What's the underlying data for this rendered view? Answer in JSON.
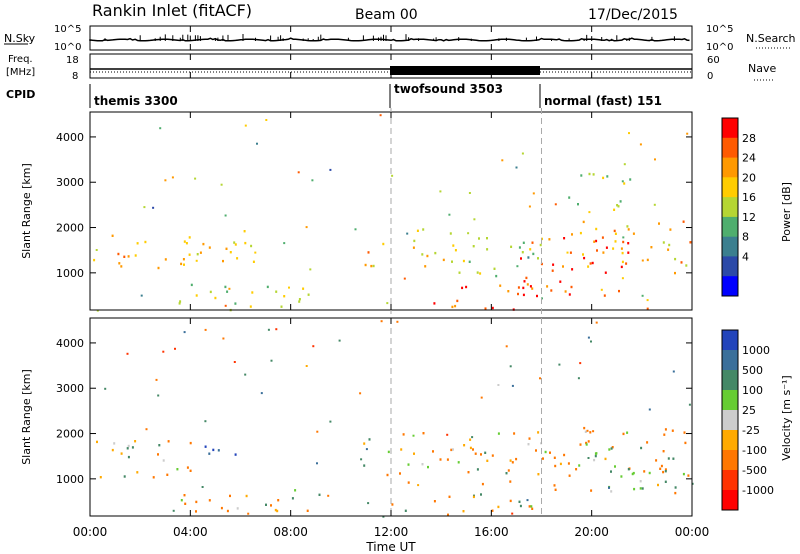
{
  "header": {
    "station": "Rankin Inlet (fitACF)",
    "beam": "Beam 00",
    "date": "17/Dec/2015"
  },
  "top_panels": {
    "nsky": {
      "label": "N.Sky",
      "tick_top": "10^5",
      "tick_bottom": "10^0"
    },
    "nsearch": {
      "label": "N.Search",
      "tick_top": "10^5",
      "tick_bottom": "10^0"
    },
    "freq": {
      "label_line1": "Freq.",
      "label_line2": "[MHz]",
      "tick_top": "18",
      "tick_bottom": "8"
    },
    "nave": {
      "label": "Nave",
      "tick_top": "60",
      "tick_bottom": "0"
    },
    "cpid": {
      "label": "CPID",
      "segments": [
        {
          "name": "themis 3300",
          "start_hour": 0.0,
          "end_hour": 12.0
        },
        {
          "name": "twofsound 3503",
          "start_hour": 12.0,
          "end_hour": 18.0
        },
        {
          "name": "normal (fast) 151",
          "start_hour": 18.0,
          "end_hour": 24.0
        }
      ]
    }
  },
  "chart_data": [
    {
      "type": "heatmap",
      "panel": "power",
      "ylabel": "Slant Range [km]",
      "yticks": [
        1000,
        2000,
        3000,
        4000
      ],
      "ylim": [
        180,
        4550
      ],
      "xlim": [
        0,
        24
      ],
      "colorbar": {
        "label": "Power [dB]",
        "ticks": [
          "28",
          "24",
          "20",
          "16",
          "12",
          "8",
          "4"
        ],
        "colors": [
          "#ff0000",
          "#ff5a00",
          "#ff9900",
          "#ffcc00",
          "#b5d633",
          "#4fae6e",
          "#3b7f8f",
          "#2b49a8",
          "#0000ff"
        ],
        "range": [
          0,
          32
        ]
      },
      "scatter_bands": [
        {
          "x0": 0.1,
          "x1": 4.5,
          "y0": 1050,
          "y1": 1950,
          "v": 22
        },
        {
          "x0": 4.3,
          "x1": 6.6,
          "y0": 1100,
          "y1": 1950,
          "v": 21
        },
        {
          "x0": 3.5,
          "x1": 9.5,
          "y0": 200,
          "y1": 800,
          "v": 15
        },
        {
          "x0": 10.8,
          "x1": 12.0,
          "y0": 1100,
          "y1": 1900,
          "v": 21
        },
        {
          "x0": 12.0,
          "x1": 15.5,
          "y0": 1000,
          "y1": 2000,
          "v": 18
        },
        {
          "x0": 13.5,
          "x1": 18.0,
          "y0": 200,
          "y1": 800,
          "v": 27
        },
        {
          "x0": 15.5,
          "x1": 18.0,
          "y0": 900,
          "y1": 2000,
          "v": 15
        },
        {
          "x0": 17.0,
          "x1": 21.5,
          "y0": 500,
          "y1": 2000,
          "v": 28
        },
        {
          "x0": 19.5,
          "x1": 24.0,
          "y0": 1000,
          "y1": 2200,
          "v": 22
        },
        {
          "x0": 19.0,
          "x1": 21.5,
          "y0": 2400,
          "y1": 3300,
          "v": 16
        }
      ]
    },
    {
      "type": "heatmap",
      "panel": "velocity",
      "ylabel": "Slant Range [km]",
      "yticks": [
        1000,
        2000,
        3000,
        4000
      ],
      "ylim": [
        180,
        4550
      ],
      "xlim": [
        0,
        24
      ],
      "colorbar": {
        "label": "Velocity [m s⁻¹]",
        "ticks": [
          "1000",
          "500",
          "100",
          "25",
          "-25",
          "-100",
          "-500",
          "-1000"
        ],
        "colors": [
          "#2244bb",
          "#3a6f9a",
          "#448866",
          "#66cc33",
          "#cccccc",
          "#ffaa00",
          "#ff7700",
          "#ff3300",
          "#ff0000"
        ]
      },
      "scatter_bands": [
        {
          "x0": 0.1,
          "x1": 2.5,
          "y0": 1050,
          "y1": 1950,
          "v": 200
        },
        {
          "x0": 2.5,
          "x1": 4.5,
          "y0": 1050,
          "y1": 1950,
          "v": -100
        },
        {
          "x0": 4.5,
          "x1": 6.0,
          "y0": 1300,
          "y1": 1950,
          "v": 800
        },
        {
          "x0": 3.5,
          "x1": 9.5,
          "y0": 200,
          "y1": 800,
          "v": -150
        },
        {
          "x0": 10.8,
          "x1": 12.0,
          "y0": 1100,
          "y1": 1900,
          "v": 100
        },
        {
          "x0": 12.0,
          "x1": 18.0,
          "y0": 900,
          "y1": 2100,
          "v": -150
        },
        {
          "x0": 12.0,
          "x1": 18.0,
          "y0": 200,
          "y1": 700,
          "v": 100
        },
        {
          "x0": 18.0,
          "x1": 24.0,
          "y0": 700,
          "y1": 2200,
          "v": -200
        },
        {
          "x0": 20.0,
          "x1": 23.5,
          "y0": 800,
          "y1": 1800,
          "v": 300
        }
      ]
    }
  ],
  "xaxis": {
    "label": "Time UT",
    "ticks": [
      "00:00",
      "04:00",
      "08:00",
      "12:00",
      "16:00",
      "20:00",
      "00:00"
    ],
    "tick_hours": [
      0,
      4,
      8,
      12,
      16,
      20,
      24
    ],
    "dashed_lines_hours": [
      12,
      18
    ]
  }
}
